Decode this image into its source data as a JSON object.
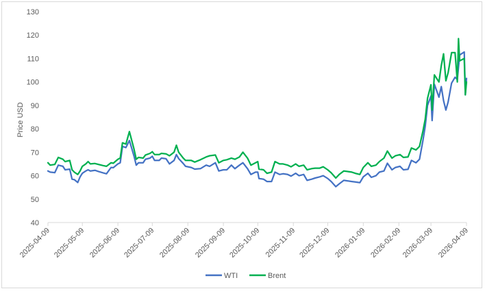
{
  "chart_data": {
    "type": "line",
    "title": "",
    "xlabel": "",
    "ylabel": "Price USD",
    "ylim": [
      40,
      130
    ],
    "y_ticks": [
      "40",
      "50",
      "60",
      "70",
      "80",
      "90",
      "100",
      "110",
      "120",
      "130"
    ],
    "x_ticks": [
      "2025-04-09",
      "2025-05-09",
      "2025-06-09",
      "2025-07-09",
      "2025-08-09",
      "2025-09-09",
      "2025-10-09",
      "2025-11-09",
      "2025-12-09",
      "2026-01-09",
      "2026-02-09",
      "2026-03-09",
      "2026-04-09"
    ],
    "grid": false,
    "legend_position": "bottom",
    "series": [
      {
        "name": "WTI",
        "color": "#4472C4",
        "points": [
          [
            "2025-04-09",
            62.0
          ],
          [
            "2025-04-11",
            61.5
          ],
          [
            "2025-04-15",
            61.3
          ],
          [
            "2025-04-18",
            64.5
          ],
          [
            "2025-04-22",
            64.0
          ],
          [
            "2025-04-24",
            62.5
          ],
          [
            "2025-04-28",
            62.8
          ],
          [
            "2025-04-30",
            58.5
          ],
          [
            "2025-05-02",
            58.3
          ],
          [
            "2025-05-05",
            57.1
          ],
          [
            "2025-05-07",
            59.5
          ],
          [
            "2025-05-09",
            61.0
          ],
          [
            "2025-05-12",
            62.0
          ],
          [
            "2025-05-14",
            62.5
          ],
          [
            "2025-05-16",
            62.0
          ],
          [
            "2025-05-20",
            62.3
          ],
          [
            "2025-05-23",
            61.8
          ],
          [
            "2025-05-27",
            61.2
          ],
          [
            "2025-05-30",
            60.8
          ],
          [
            "2025-06-03",
            63.5
          ],
          [
            "2025-06-05",
            63.4
          ],
          [
            "2025-06-09",
            65.0
          ],
          [
            "2025-06-11",
            65.5
          ],
          [
            "2025-06-13",
            72.5
          ],
          [
            "2025-06-16",
            72.0
          ],
          [
            "2025-06-19",
            75.0
          ],
          [
            "2025-06-23",
            68.5
          ],
          [
            "2025-06-25",
            64.5
          ],
          [
            "2025-06-27",
            65.5
          ],
          [
            "2025-07-01",
            65.5
          ],
          [
            "2025-07-03",
            67.0
          ],
          [
            "2025-07-07",
            67.5
          ],
          [
            "2025-07-09",
            68.3
          ],
          [
            "2025-07-11",
            66.5
          ],
          [
            "2025-07-15",
            66.5
          ],
          [
            "2025-07-17",
            67.5
          ],
          [
            "2025-07-21",
            67.2
          ],
          [
            "2025-07-24",
            65.0
          ],
          [
            "2025-07-28",
            66.5
          ],
          [
            "2025-07-30",
            69.0
          ],
          [
            "2025-08-01",
            67.3
          ],
          [
            "2025-08-05",
            65.2
          ],
          [
            "2025-08-07",
            64.0
          ],
          [
            "2025-08-12",
            63.5
          ],
          [
            "2025-08-15",
            62.8
          ],
          [
            "2025-08-20",
            63.0
          ],
          [
            "2025-08-25",
            64.5
          ],
          [
            "2025-08-28",
            64.0
          ],
          [
            "2025-09-02",
            65.5
          ],
          [
            "2025-09-05",
            62.0
          ],
          [
            "2025-09-09",
            62.5
          ],
          [
            "2025-09-12",
            62.5
          ],
          [
            "2025-09-16",
            64.5
          ],
          [
            "2025-09-19",
            63.0
          ],
          [
            "2025-09-23",
            64.5
          ],
          [
            "2025-09-26",
            65.5
          ],
          [
            "2025-09-30",
            63.0
          ],
          [
            "2025-10-03",
            60.5
          ],
          [
            "2025-10-07",
            61.5
          ],
          [
            "2025-10-09",
            61.5
          ],
          [
            "2025-10-10",
            58.8
          ],
          [
            "2025-10-14",
            58.5
          ],
          [
            "2025-10-17",
            57.5
          ],
          [
            "2025-10-21",
            57.5
          ],
          [
            "2025-10-24",
            61.5
          ],
          [
            "2025-10-28",
            60.5
          ],
          [
            "2025-10-31",
            60.8
          ],
          [
            "2025-11-04",
            60.5
          ],
          [
            "2025-11-07",
            59.8
          ],
          [
            "2025-11-11",
            61.0
          ],
          [
            "2025-11-14",
            60.0
          ],
          [
            "2025-11-18",
            60.5
          ],
          [
            "2025-11-21",
            58.0
          ],
          [
            "2025-11-25",
            58.5
          ],
          [
            "2025-11-28",
            59.0
          ],
          [
            "2025-12-02",
            59.5
          ],
          [
            "2025-12-05",
            60.0
          ],
          [
            "2025-12-09",
            58.8
          ],
          [
            "2025-12-12",
            57.5
          ],
          [
            "2025-12-16",
            55.3
          ],
          [
            "2025-12-19",
            56.5
          ],
          [
            "2025-12-23",
            58.0
          ],
          [
            "2025-12-26",
            57.8
          ],
          [
            "2025-12-30",
            57.5
          ],
          [
            "2026-01-02",
            57.3
          ],
          [
            "2026-01-06",
            57.0
          ],
          [
            "2026-01-09",
            59.5
          ],
          [
            "2026-01-13",
            61.0
          ],
          [
            "2026-01-16",
            59.3
          ],
          [
            "2026-01-20",
            60.0
          ],
          [
            "2026-01-23",
            61.5
          ],
          [
            "2026-01-27",
            62.0
          ],
          [
            "2026-01-30",
            65.3
          ],
          [
            "2026-02-03",
            62.5
          ],
          [
            "2026-02-06",
            63.5
          ],
          [
            "2026-02-10",
            64.0
          ],
          [
            "2026-02-13",
            62.5
          ],
          [
            "2026-02-17",
            62.7
          ],
          [
            "2026-02-20",
            66.5
          ],
          [
            "2026-02-24",
            65.5
          ],
          [
            "2026-02-27",
            67.0
          ],
          [
            "2026-03-02",
            75.0
          ],
          [
            "2026-03-04",
            81.0
          ],
          [
            "2026-03-06",
            90.0
          ],
          [
            "2026-03-09",
            94.0
          ],
          [
            "2026-03-10",
            83.5
          ],
          [
            "2026-03-12",
            99.0
          ],
          [
            "2026-03-16",
            93.5
          ],
          [
            "2026-03-18",
            98.0
          ],
          [
            "2026-03-20",
            92.0
          ],
          [
            "2026-03-22",
            88.0
          ],
          [
            "2026-03-24",
            91.5
          ],
          [
            "2026-03-27",
            99.5
          ],
          [
            "2026-03-30",
            102.0
          ],
          [
            "2026-04-01",
            101.0
          ],
          [
            "2026-04-03",
            111.5
          ],
          [
            "2026-04-07",
            112.8
          ],
          [
            "2026-04-08",
            94.5
          ],
          [
            "2026-04-09",
            101.5
          ]
        ]
      },
      {
        "name": "Brent",
        "color": "#00B050",
        "points": [
          [
            "2025-04-09",
            65.5
          ],
          [
            "2025-04-11",
            64.5
          ],
          [
            "2025-04-15",
            64.8
          ],
          [
            "2025-04-18",
            67.8
          ],
          [
            "2025-04-22",
            67.0
          ],
          [
            "2025-04-24",
            66.0
          ],
          [
            "2025-04-28",
            66.5
          ],
          [
            "2025-04-30",
            62.5
          ],
          [
            "2025-05-02",
            61.5
          ],
          [
            "2025-05-05",
            60.5
          ],
          [
            "2025-05-07",
            62.0
          ],
          [
            "2025-05-09",
            64.0
          ],
          [
            "2025-05-12",
            65.0
          ],
          [
            "2025-05-14",
            66.0
          ],
          [
            "2025-05-16",
            65.0
          ],
          [
            "2025-05-20",
            65.2
          ],
          [
            "2025-05-23",
            64.8
          ],
          [
            "2025-05-27",
            64.3
          ],
          [
            "2025-05-30",
            64.0
          ],
          [
            "2025-06-03",
            65.5
          ],
          [
            "2025-06-05",
            65.3
          ],
          [
            "2025-06-09",
            67.0
          ],
          [
            "2025-06-11",
            67.5
          ],
          [
            "2025-06-13",
            74.0
          ],
          [
            "2025-06-16",
            73.5
          ],
          [
            "2025-06-19",
            78.8
          ],
          [
            "2025-06-23",
            71.5
          ],
          [
            "2025-06-25",
            67.0
          ],
          [
            "2025-06-27",
            67.8
          ],
          [
            "2025-07-01",
            67.5
          ],
          [
            "2025-07-03",
            68.8
          ],
          [
            "2025-07-07",
            69.5
          ],
          [
            "2025-07-09",
            70.2
          ],
          [
            "2025-07-11",
            69.0
          ],
          [
            "2025-07-15",
            69.0
          ],
          [
            "2025-07-17",
            69.5
          ],
          [
            "2025-07-21",
            69.3
          ],
          [
            "2025-07-24",
            68.5
          ],
          [
            "2025-07-28",
            70.0
          ],
          [
            "2025-07-30",
            73.0
          ],
          [
            "2025-08-01",
            70.0
          ],
          [
            "2025-08-05",
            67.5
          ],
          [
            "2025-08-07",
            66.5
          ],
          [
            "2025-08-12",
            66.5
          ],
          [
            "2025-08-15",
            65.8
          ],
          [
            "2025-08-20",
            66.8
          ],
          [
            "2025-08-25",
            68.0
          ],
          [
            "2025-08-28",
            68.5
          ],
          [
            "2025-09-02",
            68.8
          ],
          [
            "2025-09-05",
            65.5
          ],
          [
            "2025-09-09",
            66.5
          ],
          [
            "2025-09-12",
            66.8
          ],
          [
            "2025-09-16",
            67.5
          ],
          [
            "2025-09-19",
            67.0
          ],
          [
            "2025-09-23",
            68.0
          ],
          [
            "2025-09-26",
            70.0
          ],
          [
            "2025-09-30",
            67.5
          ],
          [
            "2025-10-03",
            64.5
          ],
          [
            "2025-10-07",
            65.5
          ],
          [
            "2025-10-09",
            66.0
          ],
          [
            "2025-10-10",
            62.8
          ],
          [
            "2025-10-14",
            62.5
          ],
          [
            "2025-10-17",
            61.0
          ],
          [
            "2025-10-21",
            61.5
          ],
          [
            "2025-10-24",
            66.0
          ],
          [
            "2025-10-28",
            65.0
          ],
          [
            "2025-10-31",
            65.0
          ],
          [
            "2025-11-04",
            64.5
          ],
          [
            "2025-11-07",
            63.8
          ],
          [
            "2025-11-11",
            65.0
          ],
          [
            "2025-11-14",
            64.0
          ],
          [
            "2025-11-18",
            64.5
          ],
          [
            "2025-11-21",
            62.5
          ],
          [
            "2025-11-25",
            63.0
          ],
          [
            "2025-11-28",
            63.2
          ],
          [
            "2025-12-02",
            63.2
          ],
          [
            "2025-12-05",
            63.8
          ],
          [
            "2025-12-09",
            62.5
          ],
          [
            "2025-12-12",
            61.2
          ],
          [
            "2025-12-16",
            59.0
          ],
          [
            "2025-12-19",
            60.5
          ],
          [
            "2025-12-23",
            62.0
          ],
          [
            "2025-12-26",
            61.8
          ],
          [
            "2025-12-30",
            61.5
          ],
          [
            "2026-01-02",
            61.0
          ],
          [
            "2026-01-06",
            60.5
          ],
          [
            "2026-01-09",
            63.5
          ],
          [
            "2026-01-13",
            65.5
          ],
          [
            "2026-01-16",
            64.0
          ],
          [
            "2026-01-20",
            64.5
          ],
          [
            "2026-01-23",
            66.0
          ],
          [
            "2026-01-27",
            67.5
          ],
          [
            "2026-01-30",
            70.5
          ],
          [
            "2026-02-03",
            67.5
          ],
          [
            "2026-02-06",
            68.5
          ],
          [
            "2026-02-10",
            69.0
          ],
          [
            "2026-02-13",
            67.8
          ],
          [
            "2026-02-17",
            68.0
          ],
          [
            "2026-02-20",
            71.8
          ],
          [
            "2026-02-24",
            71.0
          ],
          [
            "2026-02-27",
            72.5
          ],
          [
            "2026-03-02",
            79.0
          ],
          [
            "2026-03-04",
            84.0
          ],
          [
            "2026-03-06",
            93.0
          ],
          [
            "2026-03-09",
            98.8
          ],
          [
            "2026-03-10",
            88.0
          ],
          [
            "2026-03-12",
            103.0
          ],
          [
            "2026-03-16",
            100.0
          ],
          [
            "2026-03-18",
            107.0
          ],
          [
            "2026-03-20",
            112.0
          ],
          [
            "2026-03-22",
            100.5
          ],
          [
            "2026-03-24",
            104.0
          ],
          [
            "2026-03-27",
            112.5
          ],
          [
            "2026-03-30",
            112.5
          ],
          [
            "2026-04-01",
            100.0
          ],
          [
            "2026-04-02",
            118.5
          ],
          [
            "2026-04-03",
            109.0
          ],
          [
            "2026-04-07",
            110.0
          ],
          [
            "2026-04-08",
            94.5
          ],
          [
            "2026-04-09",
            100.0
          ]
        ]
      }
    ]
  }
}
